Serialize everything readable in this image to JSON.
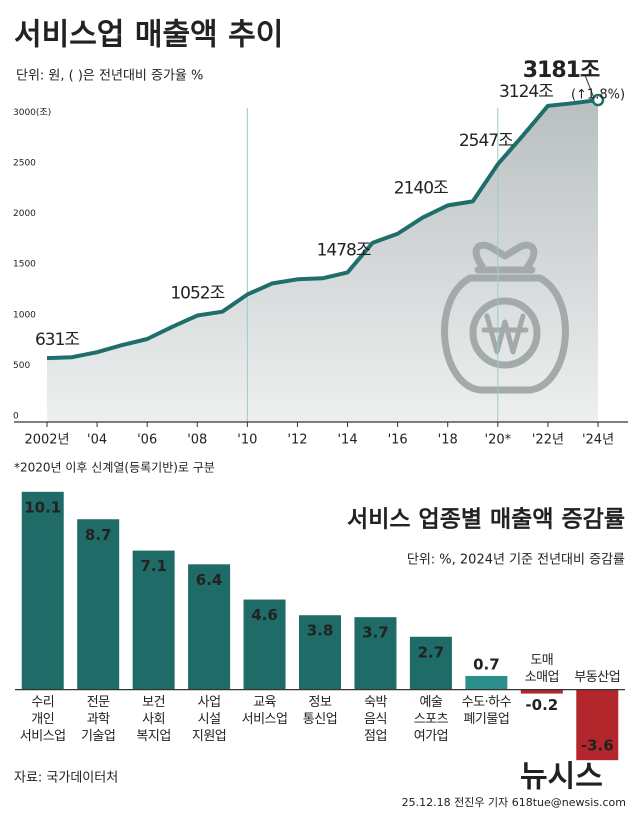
{
  "chart_data": [
    {
      "type": "area",
      "title": "서비스업 매출액 추이",
      "subtitle": "단위: 원, ( )은 전년대비 증가율 %",
      "x": [
        2002,
        2003,
        2004,
        2005,
        2006,
        2007,
        2008,
        2009,
        2010,
        2011,
        2012,
        2013,
        2014,
        2015,
        2016,
        2017,
        2018,
        2019,
        2020,
        2021,
        2022,
        2023,
        2024
      ],
      "values": [
        631,
        640,
        690,
        760,
        820,
        940,
        1052,
        1090,
        1260,
        1370,
        1410,
        1420,
        1478,
        1770,
        1860,
        2020,
        2140,
        2180,
        2547,
        2830,
        3124,
        3150,
        3181
      ],
      "value_labels": [
        "631조",
        null,
        null,
        null,
        null,
        null,
        "1052조",
        null,
        null,
        null,
        null,
        null,
        "1478조",
        null,
        null,
        null,
        "2140조",
        null,
        "2547조",
        null,
        "3124조",
        null,
        "3181조"
      ],
      "annotation": "(↑1.8%)",
      "note": "*2020년 이후 신계열(등록기반)로 구분",
      "color": "#1e6e6a",
      "vlines": [
        2010,
        2020
      ],
      "xlim": [
        2002,
        2024
      ],
      "xticks": [
        {
          "value": 2002,
          "label": "2002년"
        },
        {
          "value": 2004,
          "label": "'04"
        },
        {
          "value": 2006,
          "label": "'06"
        },
        {
          "value": 2008,
          "label": "'08"
        },
        {
          "value": 2010,
          "label": "'10"
        },
        {
          "value": 2012,
          "label": "'12"
        },
        {
          "value": 2014,
          "label": "'14"
        },
        {
          "value": 2016,
          "label": "'16"
        },
        {
          "value": 2018,
          "label": "'18"
        },
        {
          "value": 2020,
          "label": "'20*"
        },
        {
          "value": 2022,
          "label": "'22년"
        },
        {
          "value": 2024,
          "label": "'24년"
        }
      ],
      "ylim": [
        0,
        3300
      ],
      "yticks": [
        0,
        500,
        1000,
        1500,
        2000,
        2500,
        {
          "value": 3000,
          "label": "3000(조)"
        }
      ]
    },
    {
      "type": "bar",
      "title": "서비스 업종별 매출액 증감률",
      "subtitle": "단위: %, 2024년 기준 전년대비 증감률",
      "categories": [
        "수리\n개인\n서비스업",
        "전문\n과학\n기술업",
        "보건\n사회\n복지업",
        "사업\n시설\n지원업",
        "교육\n서비스업",
        "정보\n통신업",
        "숙박\n음식\n점업",
        "예술\n스포츠\n여가업",
        "수도·하수\n폐기물업",
        "도매\n소매업",
        "부동산업"
      ],
      "values": [
        10.1,
        8.7,
        7.1,
        6.4,
        4.6,
        3.8,
        3.7,
        2.7,
        0.7,
        -0.2,
        -3.6
      ],
      "colors": [
        "#1f6b68",
        "#1f6b68",
        "#1f6b68",
        "#1f6b68",
        "#1f6b68",
        "#1f6b68",
        "#1f6b68",
        "#1f6b68",
        "#2b8f8c",
        "#b3262c",
        "#b3262c"
      ],
      "ylim": [
        -4,
        10.5
      ]
    }
  ],
  "source": "자료: 국가데이터처",
  "credit": "25.12.18 전진우 기자 618tue@newsis.com",
  "logo": "뉴시스"
}
